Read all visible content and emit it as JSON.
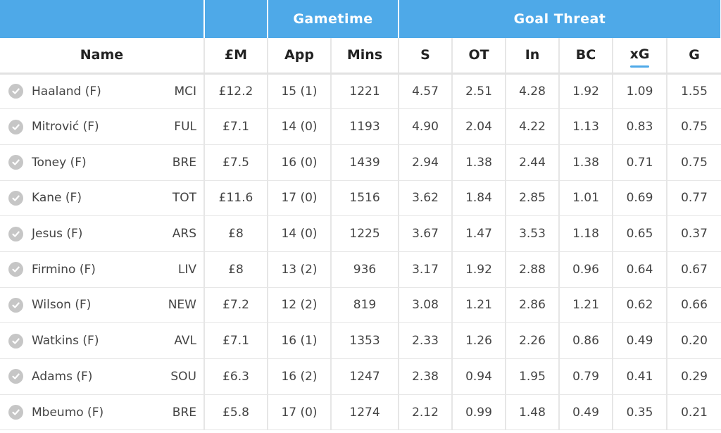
{
  "groups": {
    "gametime": "Gametime",
    "goal_threat": "Goal Threat"
  },
  "headers": {
    "name": "Name",
    "price": "£M",
    "app": "App",
    "mins": "Mins",
    "s": "S",
    "ot": "OT",
    "in": "In",
    "bc": "BC",
    "xg": "xG",
    "g": "G"
  },
  "sorted_by": "xG",
  "colors": {
    "header_blue": "#4ea9e8",
    "check_icon": "#c6c6c6"
  },
  "rows": [
    {
      "name": "Haaland (F)",
      "team": "MCI",
      "price": "£12.2",
      "app": "15 (1)",
      "mins": "1221",
      "s": "4.57",
      "ot": "2.51",
      "in": "4.28",
      "bc": "1.92",
      "xg": "1.09",
      "g": "1.55"
    },
    {
      "name": "Mitrović (F)",
      "team": "FUL",
      "price": "£7.1",
      "app": "14 (0)",
      "mins": "1193",
      "s": "4.90",
      "ot": "2.04",
      "in": "4.22",
      "bc": "1.13",
      "xg": "0.83",
      "g": "0.75"
    },
    {
      "name": "Toney (F)",
      "team": "BRE",
      "price": "£7.5",
      "app": "16 (0)",
      "mins": "1439",
      "s": "2.94",
      "ot": "1.38",
      "in": "2.44",
      "bc": "1.38",
      "xg": "0.71",
      "g": "0.75"
    },
    {
      "name": "Kane (F)",
      "team": "TOT",
      "price": "£11.6",
      "app": "17 (0)",
      "mins": "1516",
      "s": "3.62",
      "ot": "1.84",
      "in": "2.85",
      "bc": "1.01",
      "xg": "0.69",
      "g": "0.77"
    },
    {
      "name": "Jesus (F)",
      "team": "ARS",
      "price": "£8",
      "app": "14 (0)",
      "mins": "1225",
      "s": "3.67",
      "ot": "1.47",
      "in": "3.53",
      "bc": "1.18",
      "xg": "0.65",
      "g": "0.37"
    },
    {
      "name": "Firmino (F)",
      "team": "LIV",
      "price": "£8",
      "app": "13 (2)",
      "mins": "936",
      "s": "3.17",
      "ot": "1.92",
      "in": "2.88",
      "bc": "0.96",
      "xg": "0.64",
      "g": "0.67"
    },
    {
      "name": "Wilson (F)",
      "team": "NEW",
      "price": "£7.2",
      "app": "12 (2)",
      "mins": "819",
      "s": "3.08",
      "ot": "1.21",
      "in": "2.86",
      "bc": "1.21",
      "xg": "0.62",
      "g": "0.66"
    },
    {
      "name": "Watkins (F)",
      "team": "AVL",
      "price": "£7.1",
      "app": "16 (1)",
      "mins": "1353",
      "s": "2.33",
      "ot": "1.26",
      "in": "2.26",
      "bc": "0.86",
      "xg": "0.49",
      "g": "0.20"
    },
    {
      "name": "Adams (F)",
      "team": "SOU",
      "price": "£6.3",
      "app": "16 (2)",
      "mins": "1247",
      "s": "2.38",
      "ot": "0.94",
      "in": "1.95",
      "bc": "0.79",
      "xg": "0.41",
      "g": "0.29"
    },
    {
      "name": "Mbeumo (F)",
      "team": "BRE",
      "price": "£5.8",
      "app": "17 (0)",
      "mins": "1274",
      "s": "2.12",
      "ot": "0.99",
      "in": "1.48",
      "bc": "0.49",
      "xg": "0.35",
      "g": "0.21"
    }
  ]
}
